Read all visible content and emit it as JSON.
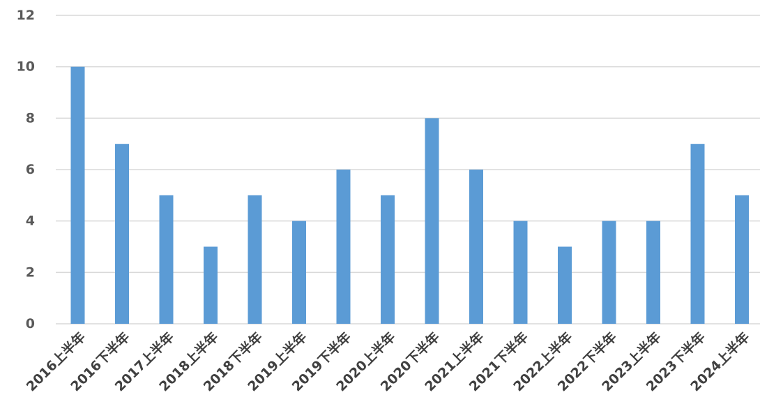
{
  "chart_data": {
    "type": "bar",
    "categories": [
      "2016上半年",
      "2016下半年",
      "2017上半年",
      "2018上半年",
      "2018下半年",
      "2019上半年",
      "2019下半年",
      "2020上半年",
      "2020下半年",
      "2021上半年",
      "2021下半年",
      "2022上半年",
      "2022下半年",
      "2023上半年",
      "2023下半年",
      "2024上半年"
    ],
    "values": [
      10,
      7,
      5,
      3,
      5,
      4,
      6,
      5,
      8,
      6,
      4,
      3,
      4,
      4,
      7,
      5
    ],
    "ylim": [
      0,
      12
    ],
    "yticks": [
      0,
      2,
      4,
      6,
      8,
      10,
      12
    ],
    "grid": true,
    "bar_color": "#5b9bd5",
    "grid_color": "#d9d9d9",
    "title": "",
    "xlabel": "",
    "ylabel": ""
  }
}
